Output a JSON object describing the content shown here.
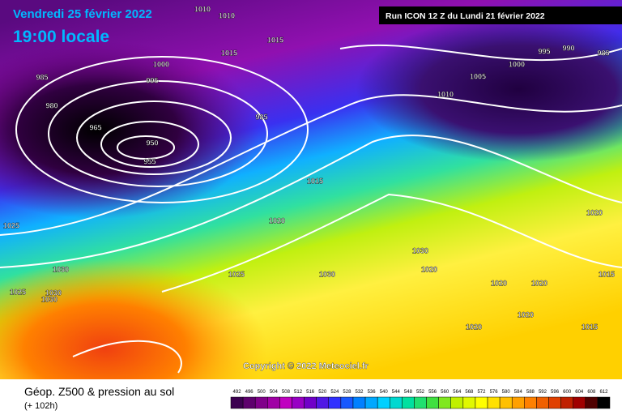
{
  "header": {
    "date": "Vendredi 25 février 2022",
    "time": "19:00 locale",
    "run": "Run ICON 12 Z du Lundi 21 février 2022"
  },
  "copyright": "Copyright © 2022 Meteociel.fr",
  "footer": {
    "title": "Géop. Z500 & pression au sol",
    "lead": "(+ 102h)"
  },
  "legend": {
    "levels": [
      492,
      496,
      500,
      504,
      508,
      512,
      516,
      520,
      524,
      528,
      532,
      536,
      540,
      544,
      548,
      552,
      556,
      560,
      564,
      568,
      572,
      576,
      580,
      584,
      588,
      592,
      596,
      600,
      604,
      608,
      612
    ]
  },
  "isobar_labels": [
    1010,
    1010,
    1015,
    1015,
    1000,
    995,
    985,
    980,
    965,
    950,
    955,
    985,
    1005,
    1010,
    995,
    990,
    985,
    1000,
    1015,
    1020,
    1025,
    1030,
    1025,
    1030,
    1030,
    1020,
    1020,
    1020,
    1020,
    1015,
    1020,
    1020,
    1015,
    1025,
    1030,
    1030
  ]
}
